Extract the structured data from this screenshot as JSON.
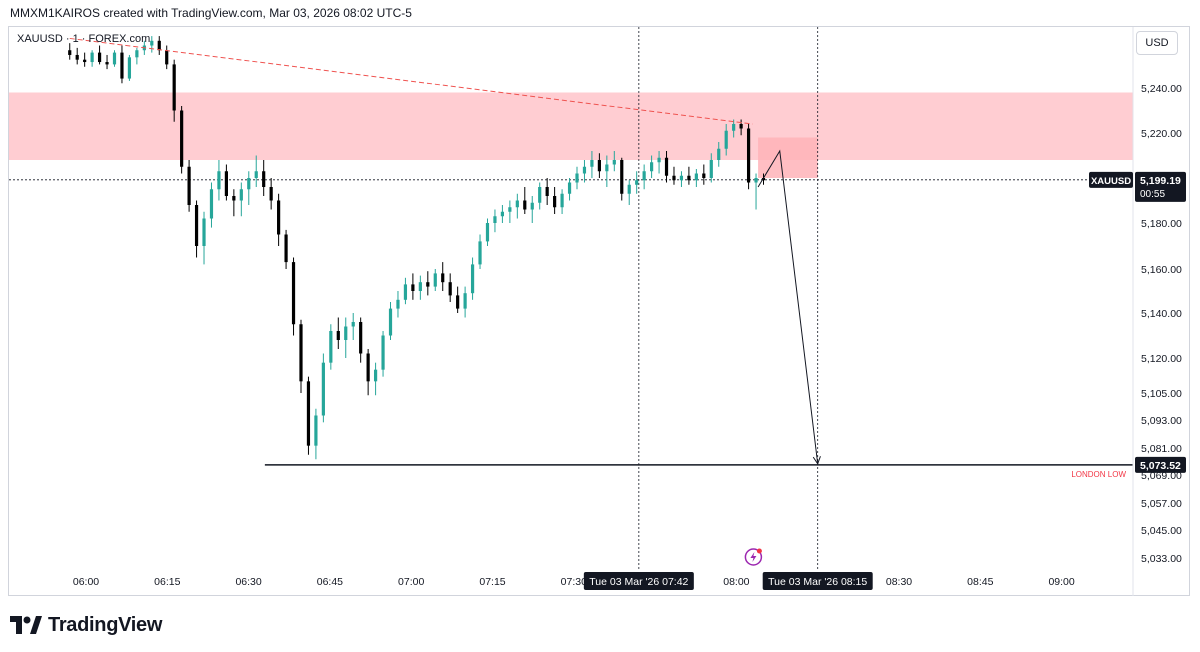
{
  "header": {
    "credit": "MMXM1KAIROS created with TradingView.com, Mar 03, 2026 08:02 UTC-5"
  },
  "symbol": {
    "label": "XAUUSD · 1 · FOREX.com"
  },
  "currency": "USD",
  "footer": {
    "brand": "TradingView"
  },
  "colors": {
    "up": "#26a69a",
    "down": "#000000",
    "zone": "#ffcdd2",
    "zone_small": "#ffb3b8",
    "trendline": "#ef5350",
    "annotation_text": "#f23645"
  },
  "icons": [
    "tradingview-logo-icon",
    "lightning-event-icon"
  ],
  "chart_data": {
    "type": "candlestick",
    "symbol": "XAUUSD",
    "timeframe": "1",
    "y_range": [
      5025,
      5265
    ],
    "x_range": [
      "05:56",
      "09:12"
    ],
    "x_axis": {
      "ticks": [
        "06:00",
        "06:15",
        "06:30",
        "06:45",
        "07:00",
        "07:15",
        "07:30",
        "08:00",
        "08:30",
        "08:45",
        "09:00"
      ],
      "tick_minutes": [
        0,
        15,
        30,
        45,
        60,
        75,
        90,
        120,
        150,
        165,
        180
      ],
      "highlight_labels": [
        {
          "label": "Tue 03 Mar '26   07:42",
          "minute": 102
        },
        {
          "label": "Tue 03 Mar '26   08:15",
          "minute": 135
        }
      ]
    },
    "y_axis": {
      "ticks": [
        "5,240.00",
        "5,220.00",
        "5,180.00",
        "5,160.00",
        "5,140.00",
        "5,120.00",
        "5,105.00",
        "5,093.00",
        "5,081.00",
        "5,069.00",
        "5,057.00",
        "5,045.00",
        "5,033.00"
      ],
      "tick_values": [
        5240,
        5220,
        5180,
        5160,
        5140,
        5120,
        5105,
        5093,
        5081,
        5069,
        5057,
        5045,
        5033
      ]
    },
    "current_price": {
      "symbol": "XAUUSD",
      "price": "5,199.19",
      "value": 5199.19,
      "countdown": "00:55"
    },
    "london_low": {
      "label": "LONDON LOW",
      "price": "5,073.52",
      "value": 5073.52,
      "start_minute": 33
    },
    "supply_zone": {
      "low": 5208,
      "high": 5238
    },
    "small_zone": {
      "low": 5200,
      "high": 5218,
      "start_minute": 124,
      "end_minute": 135
    },
    "trendline": {
      "start": {
        "minute": -3,
        "value": 5261
      },
      "end": {
        "minute": 123,
        "value": 5224
      }
    },
    "projection": [
      {
        "minute": 124,
        "value": 5196
      },
      {
        "minute": 128,
        "value": 5212
      },
      {
        "minute": 135,
        "value": 5074
      }
    ],
    "candles": [
      [
        5256,
        5259,
        5252,
        5254
      ],
      [
        5254,
        5257,
        5250,
        5252
      ],
      [
        5252,
        5255,
        5249,
        5251
      ],
      [
        5251,
        5256,
        5249,
        5255
      ],
      [
        5255,
        5258,
        5250,
        5251
      ],
      [
        5251,
        5254,
        5248,
        5250
      ],
      [
        5250,
        5256,
        5249,
        5255
      ],
      [
        5255,
        5258,
        5242,
        5244
      ],
      [
        5244,
        5254,
        5243,
        5253
      ],
      [
        5253,
        5257,
        5250,
        5256
      ],
      [
        5256,
        5260,
        5254,
        5258
      ],
      [
        5258,
        5262,
        5255,
        5260
      ],
      [
        5260,
        5262,
        5254,
        5256
      ],
      [
        5256,
        5258,
        5248,
        5250
      ],
      [
        5250,
        5252,
        5225,
        5230
      ],
      [
        5230,
        5232,
        5202,
        5205
      ],
      [
        5205,
        5208,
        5185,
        5188
      ],
      [
        5188,
        5190,
        5165,
        5170
      ],
      [
        5170,
        5185,
        5162,
        5182
      ],
      [
        5182,
        5198,
        5178,
        5195
      ],
      [
        5195,
        5208,
        5190,
        5203
      ],
      [
        5203,
        5206,
        5190,
        5192
      ],
      [
        5192,
        5195,
        5183,
        5190
      ],
      [
        5190,
        5198,
        5183,
        5195
      ],
      [
        5195,
        5203,
        5188,
        5200
      ],
      [
        5200,
        5210,
        5196,
        5203
      ],
      [
        5203,
        5208,
        5192,
        5196
      ],
      [
        5196,
        5200,
        5186,
        5190
      ],
      [
        5190,
        5193,
        5170,
        5175
      ],
      [
        5175,
        5177,
        5160,
        5163
      ],
      [
        5163,
        5165,
        5130,
        5135
      ],
      [
        5135,
        5137,
        5105,
        5110
      ],
      [
        5110,
        5112,
        5078,
        5082
      ],
      [
        5082,
        5098,
        5076,
        5095
      ],
      [
        5095,
        5122,
        5092,
        5118
      ],
      [
        5118,
        5135,
        5115,
        5132
      ],
      [
        5132,
        5138,
        5124,
        5128
      ],
      [
        5128,
        5138,
        5120,
        5134
      ],
      [
        5134,
        5140,
        5128,
        5136
      ],
      [
        5136,
        5138,
        5118,
        5122
      ],
      [
        5122,
        5124,
        5104,
        5110
      ],
      [
        5110,
        5118,
        5104,
        5115
      ],
      [
        5115,
        5132,
        5112,
        5130
      ],
      [
        5130,
        5145,
        5128,
        5142
      ],
      [
        5142,
        5150,
        5138,
        5146
      ],
      [
        5146,
        5156,
        5144,
        5153
      ],
      [
        5153,
        5158,
        5146,
        5150
      ],
      [
        5150,
        5157,
        5146,
        5154
      ],
      [
        5154,
        5159,
        5148,
        5152
      ],
      [
        5152,
        5160,
        5150,
        5158
      ],
      [
        5158,
        5163,
        5150,
        5154
      ],
      [
        5154,
        5158,
        5145,
        5148
      ],
      [
        5148,
        5152,
        5140,
        5142
      ],
      [
        5142,
        5152,
        5138,
        5149
      ],
      [
        5149,
        5165,
        5146,
        5162
      ],
      [
        5162,
        5175,
        5160,
        5172
      ],
      [
        5172,
        5182,
        5170,
        5180
      ],
      [
        5180,
        5186,
        5176,
        5183
      ],
      [
        5183,
        5188,
        5180,
        5185
      ],
      [
        5185,
        5190,
        5180,
        5187
      ],
      [
        5187,
        5193,
        5182,
        5190
      ],
      [
        5190,
        5196,
        5184,
        5186
      ],
      [
        5186,
        5192,
        5180,
        5189
      ],
      [
        5189,
        5198,
        5186,
        5196
      ],
      [
        5196,
        5200,
        5188,
        5192
      ],
      [
        5192,
        5196,
        5184,
        5187
      ],
      [
        5187,
        5195,
        5184,
        5193
      ],
      [
        5193,
        5200,
        5190,
        5198
      ],
      [
        5198,
        5205,
        5195,
        5202
      ],
      [
        5202,
        5208,
        5198,
        5205
      ],
      [
        5205,
        5212,
        5200,
        5208
      ],
      [
        5208,
        5211,
        5200,
        5203
      ],
      [
        5203,
        5210,
        5196,
        5206
      ],
      [
        5206,
        5212,
        5203,
        5208
      ],
      [
        5208,
        5209,
        5190,
        5193
      ],
      [
        5193,
        5199,
        5188,
        5197
      ],
      [
        5197,
        5203,
        5193,
        5199
      ],
      [
        5199,
        5206,
        5195,
        5203
      ],
      [
        5203,
        5210,
        5200,
        5207
      ],
      [
        5207,
        5212,
        5202,
        5209
      ],
      [
        5209,
        5212,
        5198,
        5201
      ],
      [
        5201,
        5205,
        5197,
        5199
      ],
      [
        5199,
        5203,
        5196,
        5201
      ],
      [
        5201,
        5205,
        5197,
        5199
      ],
      [
        5199,
        5204,
        5196,
        5202
      ],
      [
        5202,
        5206,
        5197,
        5200
      ],
      [
        5200,
        5211,
        5198,
        5208
      ],
      [
        5208,
        5216,
        5205,
        5213
      ],
      [
        5213,
        5224,
        5210,
        5221
      ],
      [
        5221,
        5226,
        5218,
        5224
      ],
      [
        5224,
        5226,
        5219,
        5222
      ],
      [
        5222,
        5224,
        5195,
        5198
      ],
      [
        5198,
        5202,
        5186,
        5200
      ],
      [
        5200,
        5202,
        5197,
        5199
      ]
    ]
  }
}
